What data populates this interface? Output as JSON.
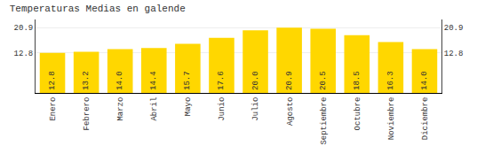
{
  "chart_data": {
    "type": "bar",
    "title": "Temperaturas Medias en galende",
    "categories": [
      "Enero",
      "Febrero",
      "Marzo",
      "Abril",
      "Mayo",
      "Junio",
      "Julio",
      "Agosto",
      "Septiembre",
      "Octubre",
      "Noviembre",
      "Diciembre"
    ],
    "values": [
      12.8,
      13.2,
      14.0,
      14.4,
      15.7,
      17.6,
      20.0,
      20.9,
      20.5,
      18.5,
      16.3,
      14.0
    ],
    "value_labels": [
      "12.8",
      "13.2",
      "14.0",
      "14.4",
      "15.7",
      "17.6",
      "20.0",
      "20.9",
      "20.5",
      "18.5",
      "16.3",
      "14.0"
    ],
    "color": "#FFD700",
    "ylim": [
      0,
      23.5
    ],
    "yticks": [
      12.8,
      20.9
    ],
    "y2lim": [
      0,
      23.5
    ],
    "y2ticks": [
      12.8,
      20.9
    ],
    "grid": true,
    "data_labels": true
  }
}
